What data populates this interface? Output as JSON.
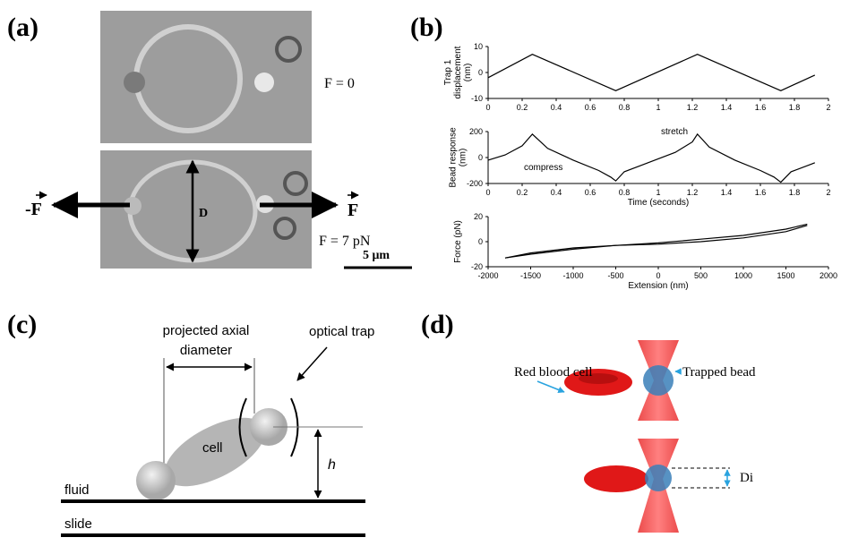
{
  "panels": {
    "a": {
      "label": "(a)",
      "top_force": "F = 0",
      "bottom_force": "F = 7 pN",
      "left_arrow": "-F",
      "right_arrow": "F",
      "diameter": "D",
      "scale_bar": "5 μm"
    },
    "b": {
      "label": "(b)"
    },
    "c": {
      "label": "(c)",
      "diameter_label": [
        "projected axial",
        "diameter"
      ],
      "trap_label": "optical trap",
      "cell": "cell",
      "height": "h",
      "fluid": "fluid",
      "slide": "slide"
    },
    "d": {
      "label": "(d)",
      "cell_label": "Red blood cell",
      "bead_label": "Trapped bead",
      "di": "Di"
    }
  },
  "chart_data": [
    {
      "type": "line",
      "ylabel": [
        "Trap 1",
        "displacement",
        "(nm)"
      ],
      "x": [
        0,
        0.26,
        0.75,
        1.23,
        1.72,
        1.92
      ],
      "values": [
        -2,
        7,
        -7,
        7,
        -7,
        -1
      ],
      "color": "#000000",
      "xlim": [
        0,
        2
      ],
      "xticks": [
        0,
        0.2,
        0.4,
        0.6,
        0.8,
        1,
        1.2,
        1.4,
        1.6,
        1.8,
        2
      ],
      "ylim": [
        -10,
        10
      ],
      "yticks": [
        -10,
        0,
        10
      ]
    },
    {
      "type": "line",
      "ylabel": [
        "Bead response",
        "(nm)"
      ],
      "xlabel": "Time (seconds)",
      "annotations": [
        "stretch",
        "compress"
      ],
      "x": [
        0,
        0.1,
        0.2,
        0.26,
        0.35,
        0.5,
        0.65,
        0.72,
        0.75,
        0.8,
        0.9,
        1.0,
        1.1,
        1.2,
        1.23,
        1.3,
        1.45,
        1.6,
        1.68,
        1.72,
        1.78,
        1.9,
        1.92
      ],
      "values": [
        -20,
        20,
        90,
        180,
        70,
        -20,
        -100,
        -150,
        -180,
        -110,
        -60,
        -10,
        40,
        120,
        180,
        80,
        -20,
        -100,
        -150,
        -190,
        -110,
        -50,
        -40
      ],
      "color": "#000000",
      "xlim": [
        0,
        2
      ],
      "xticks": [
        0,
        0.2,
        0.4,
        0.6,
        0.8,
        1,
        1.2,
        1.4,
        1.6,
        1.8,
        2
      ],
      "ylim": [
        -200,
        200
      ],
      "yticks": [
        -200,
        0,
        200
      ]
    },
    {
      "type": "line",
      "ylabel": [
        "Force (pN)"
      ],
      "xlabel": "Extension (nm)",
      "x": [
        -1800,
        -1500,
        -1000,
        -500,
        0,
        500,
        1000,
        1500,
        1750
      ],
      "series": [
        {
          "color": "#000000",
          "values": [
            -13,
            -9,
            -5,
            -3,
            -2,
            0,
            3,
            8,
            13
          ]
        },
        {
          "color": "#000000",
          "values": [
            -13,
            -10,
            -6,
            -3,
            -1,
            2,
            5,
            10,
            14
          ]
        }
      ],
      "xlim": [
        -2000,
        2000
      ],
      "xticks": [
        -2000,
        -1500,
        -1000,
        -500,
        0,
        500,
        1000,
        1500,
        2000
      ],
      "ylim": [
        -20,
        20
      ],
      "yticks": [
        -20,
        0,
        20
      ]
    }
  ]
}
